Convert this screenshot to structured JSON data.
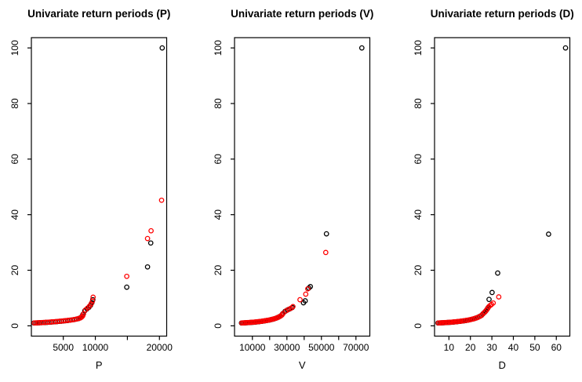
{
  "colors": {
    "series_black": "#000000",
    "series_red": "#FF0000",
    "axis": "#000000",
    "background": "#FFFFFF"
  },
  "chart_data": [
    {
      "type": "scatter",
      "title": "Univariate return periods (P)",
      "xlabel": "P",
      "ylabel": "",
      "grid": false,
      "legend": "none",
      "xlim": [
        20,
        21130
      ],
      "ylim": [
        -3.7,
        103.7
      ],
      "xticks": [
        {
          "v": 5000,
          "label": "5000"
        },
        {
          "v": 10000,
          "label": "10000"
        },
        {
          "v": 15000,
          "label": ""
        },
        {
          "v": 20000,
          "label": "20000"
        }
      ],
      "yticks": [
        {
          "v": 0,
          "label": "0"
        },
        {
          "v": 20,
          "label": "20"
        },
        {
          "v": 40,
          "label": "40"
        },
        {
          "v": 60,
          "label": "60"
        },
        {
          "v": 80,
          "label": "80"
        },
        {
          "v": 100,
          "label": "100"
        }
      ],
      "series": [
        {
          "name": "black-points",
          "color": "#000000",
          "points": [
            [
              420,
              1.0
            ],
            [
              700,
              1.03
            ],
            [
              980,
              1.06
            ],
            [
              1260,
              1.09
            ],
            [
              1560,
              1.13
            ],
            [
              1860,
              1.17
            ],
            [
              2160,
              1.21
            ],
            [
              2470,
              1.25
            ],
            [
              2780,
              1.3
            ],
            [
              3090,
              1.35
            ],
            [
              3400,
              1.41
            ],
            [
              3720,
              1.47
            ],
            [
              4040,
              1.53
            ],
            [
              4360,
              1.6
            ],
            [
              4690,
              1.67
            ],
            [
              5020,
              1.75
            ],
            [
              5350,
              1.83
            ],
            [
              5690,
              1.92
            ],
            [
              6030,
              2.02
            ],
            [
              6370,
              2.13
            ],
            [
              6710,
              2.26
            ],
            [
              7050,
              2.43
            ],
            [
              7390,
              2.63
            ],
            [
              7630,
              2.85
            ],
            [
              7820,
              3.15
            ],
            [
              7960,
              3.55
            ],
            [
              8070,
              4.15
            ],
            [
              8350,
              5.4
            ],
            [
              8700,
              6.1
            ],
            [
              9000,
              6.7
            ],
            [
              9250,
              7.4
            ],
            [
              9450,
              8.3
            ],
            [
              9600,
              9.4
            ],
            [
              14900,
              13.9
            ],
            [
              18150,
              21.2
            ],
            [
              18650,
              29.8
            ],
            [
              20430,
              100
            ]
          ]
        },
        {
          "name": "red-points",
          "color": "#FF0000",
          "points": [
            [
              490,
              1.05
            ],
            [
              770,
              1.08
            ],
            [
              1050,
              1.11
            ],
            [
              1330,
              1.14
            ],
            [
              1630,
              1.18
            ],
            [
              1930,
              1.22
            ],
            [
              2230,
              1.26
            ],
            [
              2540,
              1.3
            ],
            [
              2850,
              1.35
            ],
            [
              3160,
              1.4
            ],
            [
              3470,
              1.46
            ],
            [
              3790,
              1.52
            ],
            [
              4110,
              1.58
            ],
            [
              4430,
              1.65
            ],
            [
              4760,
              1.72
            ],
            [
              5090,
              1.8
            ],
            [
              5420,
              1.88
            ],
            [
              5760,
              1.97
            ],
            [
              6100,
              2.07
            ],
            [
              6440,
              2.18
            ],
            [
              6780,
              2.31
            ],
            [
              7120,
              2.48
            ],
            [
              7460,
              2.68
            ],
            [
              7700,
              2.91
            ],
            [
              7890,
              3.22
            ],
            [
              8030,
              3.62
            ],
            [
              8140,
              4.25
            ],
            [
              8450,
              5.7
            ],
            [
              8800,
              6.4
            ],
            [
              9100,
              7.1
            ],
            [
              9350,
              7.9
            ],
            [
              9550,
              8.9
            ],
            [
              9650,
              10.3
            ],
            [
              14900,
              17.8
            ],
            [
              18150,
              31.4
            ],
            [
              18700,
              34.2
            ],
            [
              20330,
              45.2
            ]
          ]
        }
      ]
    },
    {
      "type": "scatter",
      "title": "Univariate return periods (V)",
      "xlabel": "V",
      "ylabel": "",
      "grid": false,
      "legend": "none",
      "xlim": [
        -350,
        78050
      ],
      "ylim": [
        -3.7,
        103.7
      ],
      "xticks": [
        {
          "v": 10000,
          "label": "10000"
        },
        {
          "v": 20000,
          "label": ""
        },
        {
          "v": 30000,
          "label": "30000"
        },
        {
          "v": 40000,
          "label": ""
        },
        {
          "v": 50000,
          "label": "50000"
        },
        {
          "v": 60000,
          "label": ""
        },
        {
          "v": 70000,
          "label": "70000"
        }
      ],
      "yticks": [
        {
          "v": 0,
          "label": "0"
        },
        {
          "v": 20,
          "label": "20"
        },
        {
          "v": 40,
          "label": "40"
        },
        {
          "v": 60,
          "label": "60"
        },
        {
          "v": 80,
          "label": "80"
        },
        {
          "v": 100,
          "label": "100"
        }
      ],
      "series": [
        {
          "name": "black-points",
          "color": "#000000",
          "points": [
            [
              3700,
              1.0
            ],
            [
              4550,
              1.03
            ],
            [
              5400,
              1.06
            ],
            [
              6250,
              1.09
            ],
            [
              7100,
              1.12
            ],
            [
              7950,
              1.16
            ],
            [
              8800,
              1.2
            ],
            [
              9650,
              1.24
            ],
            [
              10500,
              1.28
            ],
            [
              11350,
              1.33
            ],
            [
              12200,
              1.38
            ],
            [
              13050,
              1.44
            ],
            [
              13900,
              1.5
            ],
            [
              14750,
              1.57
            ],
            [
              15600,
              1.64
            ],
            [
              16450,
              1.72
            ],
            [
              17300,
              1.8
            ],
            [
              18150,
              1.89
            ],
            [
              19000,
              1.99
            ],
            [
              19900,
              2.1
            ],
            [
              20800,
              2.22
            ],
            [
              21700,
              2.36
            ],
            [
              22600,
              2.52
            ],
            [
              23500,
              2.7
            ],
            [
              24400,
              2.92
            ],
            [
              25300,
              3.18
            ],
            [
              26200,
              3.5
            ],
            [
              27000,
              3.9
            ],
            [
              27600,
              4.4
            ],
            [
              28900,
              5.2
            ],
            [
              30300,
              5.7
            ],
            [
              31700,
              6.1
            ],
            [
              33100,
              6.6
            ],
            [
              39600,
              8.3
            ],
            [
              40600,
              9.0
            ],
            [
              42700,
              13.6
            ],
            [
              43600,
              14.1
            ],
            [
              52900,
              33.1
            ],
            [
              73400,
              100
            ]
          ]
        },
        {
          "name": "red-points",
          "color": "#FF0000",
          "points": [
            [
              3900,
              1.05
            ],
            [
              4750,
              1.08
            ],
            [
              5600,
              1.11
            ],
            [
              6450,
              1.14
            ],
            [
              7300,
              1.17
            ],
            [
              8150,
              1.21
            ],
            [
              9000,
              1.25
            ],
            [
              9850,
              1.29
            ],
            [
              10700,
              1.33
            ],
            [
              11550,
              1.38
            ],
            [
              12400,
              1.43
            ],
            [
              13250,
              1.49
            ],
            [
              14100,
              1.55
            ],
            [
              14950,
              1.62
            ],
            [
              15800,
              1.69
            ],
            [
              16650,
              1.77
            ],
            [
              17500,
              1.85
            ],
            [
              18350,
              1.94
            ],
            [
              19200,
              2.04
            ],
            [
              20100,
              2.15
            ],
            [
              21000,
              2.27
            ],
            [
              21900,
              2.41
            ],
            [
              22800,
              2.57
            ],
            [
              23700,
              2.75
            ],
            [
              24600,
              2.97
            ],
            [
              25500,
              3.23
            ],
            [
              26400,
              3.55
            ],
            [
              27200,
              3.95
            ],
            [
              27800,
              4.45
            ],
            [
              29500,
              5.4
            ],
            [
              30900,
              5.9
            ],
            [
              32400,
              6.35
            ],
            [
              33500,
              6.9
            ],
            [
              37600,
              9.4
            ],
            [
              40900,
              11.4
            ],
            [
              42100,
              13.3
            ],
            [
              52500,
              26.4
            ]
          ]
        }
      ]
    },
    {
      "type": "scatter",
      "title": "Univariate return periods (D)",
      "xlabel": "D",
      "ylabel": "",
      "grid": false,
      "legend": "none",
      "xlim": [
        3.3,
        66.3
      ],
      "ylim": [
        -3.7,
        103.7
      ],
      "xticks": [
        {
          "v": 10,
          "label": "10"
        },
        {
          "v": 20,
          "label": "20"
        },
        {
          "v": 30,
          "label": "30"
        },
        {
          "v": 40,
          "label": "40"
        },
        {
          "v": 50,
          "label": "50"
        },
        {
          "v": 60,
          "label": "60"
        }
      ],
      "yticks": [
        {
          "v": 0,
          "label": "0"
        },
        {
          "v": 20,
          "label": "20"
        },
        {
          "v": 40,
          "label": "40"
        },
        {
          "v": 60,
          "label": "60"
        },
        {
          "v": 80,
          "label": "80"
        },
        {
          "v": 100,
          "label": "100"
        }
      ],
      "series": [
        {
          "name": "black-points",
          "color": "#000000",
          "points": [
            [
              4.9,
              1.0
            ],
            [
              5.7,
              1.03
            ],
            [
              6.4,
              1.06
            ],
            [
              7.2,
              1.09
            ],
            [
              7.9,
              1.12
            ],
            [
              8.7,
              1.16
            ],
            [
              9.4,
              1.2
            ],
            [
              10.2,
              1.24
            ],
            [
              10.9,
              1.28
            ],
            [
              11.7,
              1.33
            ],
            [
              12.4,
              1.38
            ],
            [
              13.2,
              1.44
            ],
            [
              13.9,
              1.5
            ],
            [
              14.7,
              1.57
            ],
            [
              15.4,
              1.64
            ],
            [
              16.2,
              1.72
            ],
            [
              17.0,
              1.81
            ],
            [
              17.9,
              1.91
            ],
            [
              18.7,
              2.02
            ],
            [
              19.5,
              2.14
            ],
            [
              20.3,
              2.28
            ],
            [
              21.1,
              2.44
            ],
            [
              21.9,
              2.62
            ],
            [
              22.7,
              2.83
            ],
            [
              23.5,
              3.08
            ],
            [
              24.3,
              3.38
            ],
            [
              25.1,
              3.75
            ],
            [
              25.8,
              4.3
            ],
            [
              26.5,
              4.8
            ],
            [
              27.1,
              5.3
            ],
            [
              27.7,
              5.9
            ],
            [
              28.2,
              6.5
            ],
            [
              28.7,
              9.5
            ],
            [
              30.1,
              12.0
            ],
            [
              32.7,
              19.0
            ],
            [
              56.4,
              33.0
            ],
            [
              64.3,
              100
            ]
          ]
        },
        {
          "name": "red-points",
          "color": "#FF0000",
          "points": [
            [
              5.1,
              1.05
            ],
            [
              5.9,
              1.08
            ],
            [
              6.6,
              1.11
            ],
            [
              7.4,
              1.14
            ],
            [
              8.1,
              1.17
            ],
            [
              8.9,
              1.21
            ],
            [
              9.6,
              1.25
            ],
            [
              10.4,
              1.29
            ],
            [
              11.1,
              1.33
            ],
            [
              11.9,
              1.38
            ],
            [
              12.6,
              1.43
            ],
            [
              13.4,
              1.49
            ],
            [
              14.1,
              1.55
            ],
            [
              14.9,
              1.62
            ],
            [
              15.6,
              1.69
            ],
            [
              16.4,
              1.77
            ],
            [
              17.2,
              1.86
            ],
            [
              18.1,
              1.96
            ],
            [
              18.9,
              2.07
            ],
            [
              19.7,
              2.19
            ],
            [
              20.5,
              2.33
            ],
            [
              21.3,
              2.49
            ],
            [
              22.1,
              2.67
            ],
            [
              22.9,
              2.88
            ],
            [
              23.7,
              3.13
            ],
            [
              24.5,
              3.43
            ],
            [
              25.3,
              3.8
            ],
            [
              26.1,
              4.5
            ],
            [
              26.8,
              5.0
            ],
            [
              27.4,
              5.6
            ],
            [
              28.0,
              6.2
            ],
            [
              28.6,
              6.9
            ],
            [
              29.3,
              7.4
            ],
            [
              29.8,
              7.7
            ],
            [
              30.6,
              8.2
            ],
            [
              33.2,
              10.4
            ]
          ]
        }
      ]
    }
  ]
}
